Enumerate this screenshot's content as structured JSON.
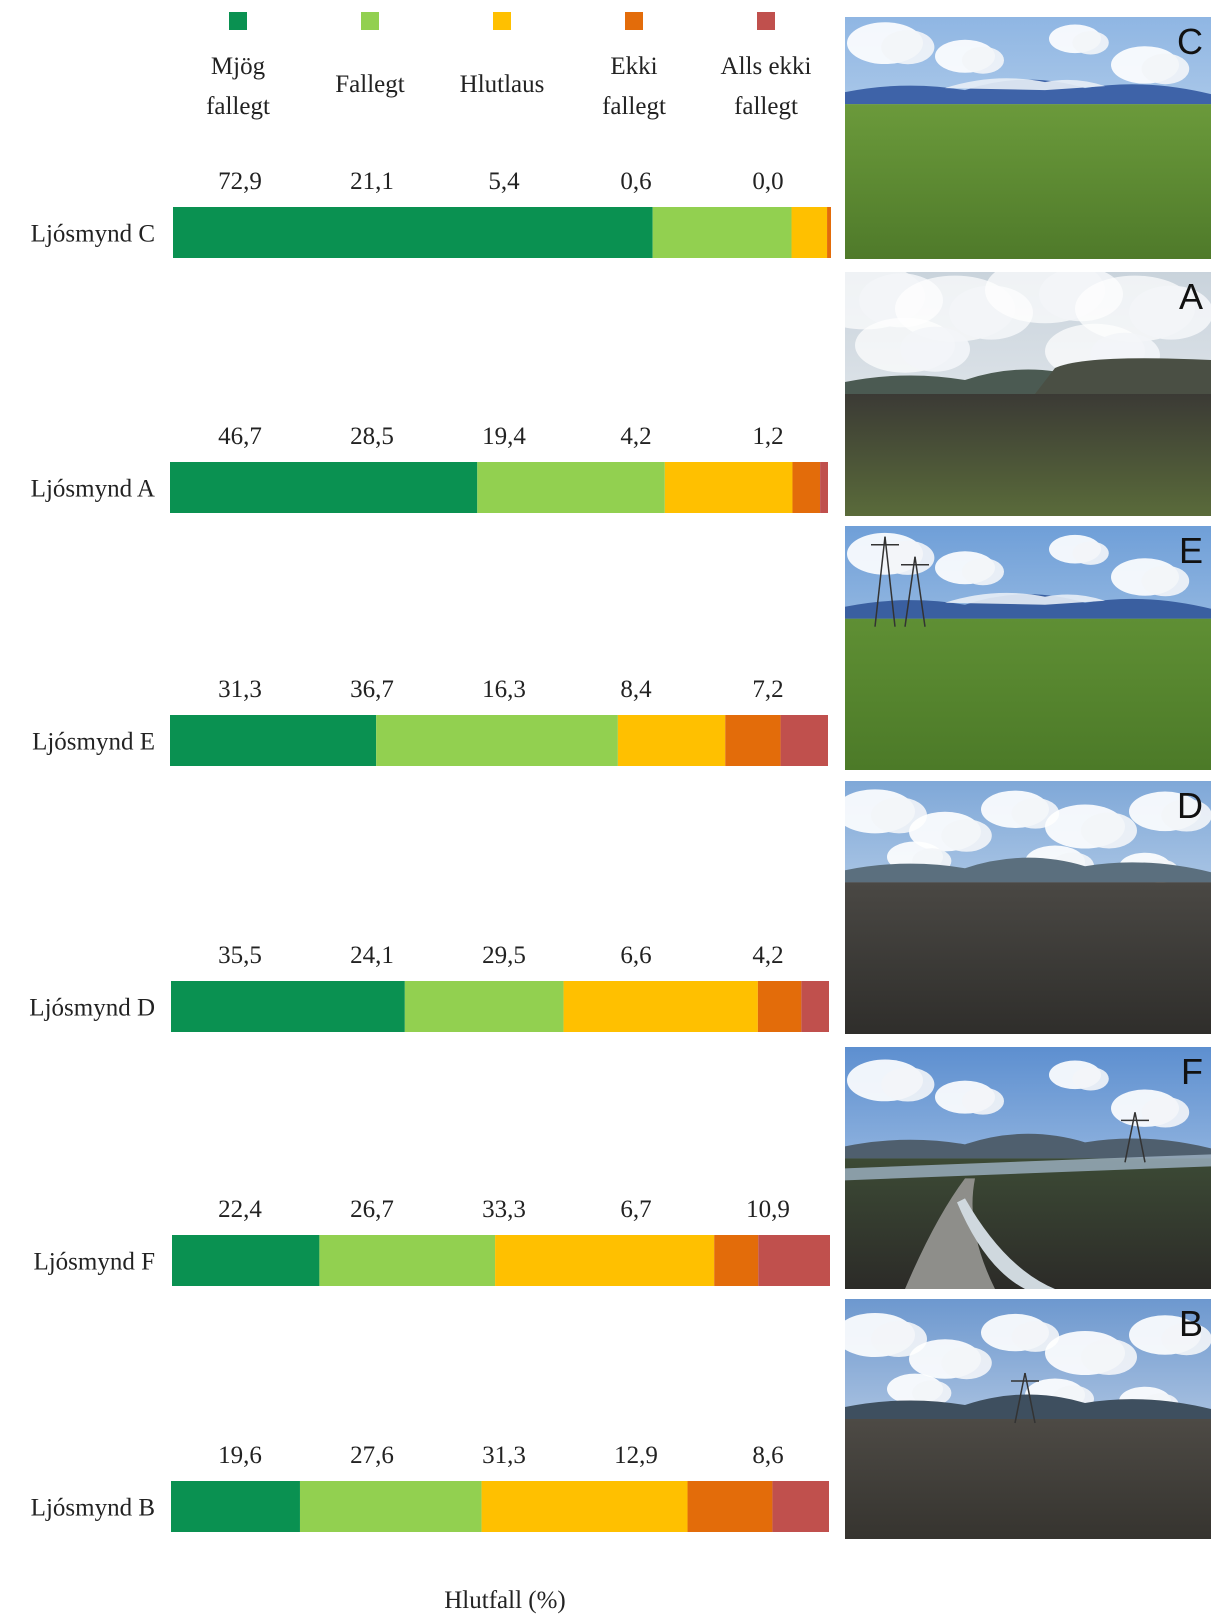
{
  "chart_data": {
    "type": "bar",
    "stacked": true,
    "orientation": "horizontal",
    "xlabel": "Hlutfall (%)",
    "legend": {
      "placement": "top",
      "entries": [
        {
          "label_lines": [
            "Mjög",
            "fallegt"
          ],
          "color": "#0a9151"
        },
        {
          "label_lines": [
            "Fallegt"
          ],
          "color": "#92d050"
        },
        {
          "label_lines": [
            "Hlutlaus"
          ],
          "color": "#ffc000"
        },
        {
          "label_lines": [
            "Ekki",
            "fallegt"
          ],
          "color": "#e36c0a"
        },
        {
          "label_lines": [
            "Alls ekki",
            "fallegt"
          ],
          "color": "#c0504d"
        }
      ]
    },
    "categories": [
      "Ljósmynd C",
      "Ljósmynd A",
      "Ljósmynd E",
      "Ljósmynd D",
      "Ljósmynd F",
      "Ljósmynd B"
    ],
    "series": [
      {
        "name": "Mjög fallegt",
        "values": [
          72.9,
          46.7,
          31.3,
          35.5,
          22.4,
          19.6
        ],
        "labels": [
          "72,9",
          "46,7",
          "31,3",
          "35,5",
          "22,4",
          "19,6"
        ]
      },
      {
        "name": "Fallegt",
        "values": [
          21.1,
          28.5,
          36.7,
          24.1,
          26.7,
          27.6
        ],
        "labels": [
          "21,1",
          "28,5",
          "36,7",
          "24,1",
          "26,7",
          "27,6"
        ]
      },
      {
        "name": "Hlutlaus",
        "values": [
          5.4,
          19.4,
          16.3,
          29.5,
          33.3,
          31.3
        ],
        "labels": [
          "5,4",
          "19,4",
          "16,3",
          "29,5",
          "33,3",
          "31,3"
        ]
      },
      {
        "name": "Ekki fallegt",
        "values": [
          0.6,
          4.2,
          8.4,
          6.6,
          6.7,
          12.9
        ],
        "labels": [
          "0,6",
          "4,2",
          "8,4",
          "6,6",
          "6,7",
          "12,9"
        ]
      },
      {
        "name": "Alls ekki fallegt",
        "values": [
          0.0,
          1.2,
          7.2,
          4.2,
          10.9,
          8.6
        ],
        "labels": [
          "0,0",
          "1,2",
          "7,2",
          "4,2",
          "10,9",
          "8,6"
        ]
      }
    ]
  },
  "photos": [
    {
      "letter": "C",
      "scene": "grass-mountains"
    },
    {
      "letter": "A",
      "scene": "lava-hill"
    },
    {
      "letter": "E",
      "scene": "grass-pylons"
    },
    {
      "letter": "D",
      "scene": "gravel-plain"
    },
    {
      "letter": "F",
      "scene": "canyon-river"
    },
    {
      "letter": "B",
      "scene": "gravel-pylon"
    }
  ]
}
